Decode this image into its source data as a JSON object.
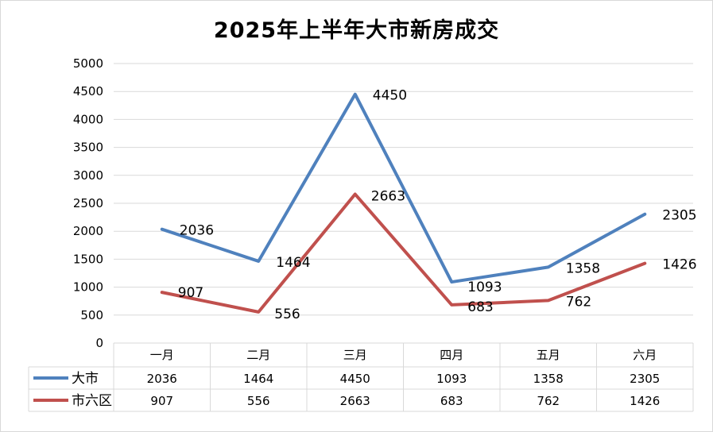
{
  "colors": {
    "series_da_shi": "#4f81bd",
    "series_shi_liu_qu": "#c0504d",
    "grid": "#d9d9d9"
  },
  "chart_data": {
    "type": "line",
    "title": "2025年上半年大市新房成交",
    "categories": [
      "一月",
      "二月",
      "三月",
      "四月",
      "五月",
      "六月"
    ],
    "series": [
      {
        "name": "大市",
        "values": [
          2036,
          1464,
          4450,
          1093,
          1358,
          2305
        ]
      },
      {
        "name": "市六区",
        "values": [
          907,
          556,
          2663,
          683,
          762,
          1426
        ]
      }
    ],
    "yticks": [
      0,
      500,
      1000,
      1500,
      2000,
      2500,
      3000,
      3500,
      4000,
      4500,
      5000
    ],
    "ylim": [
      0,
      5000
    ],
    "grid": true,
    "legend": "data-table",
    "data_labels": true
  }
}
